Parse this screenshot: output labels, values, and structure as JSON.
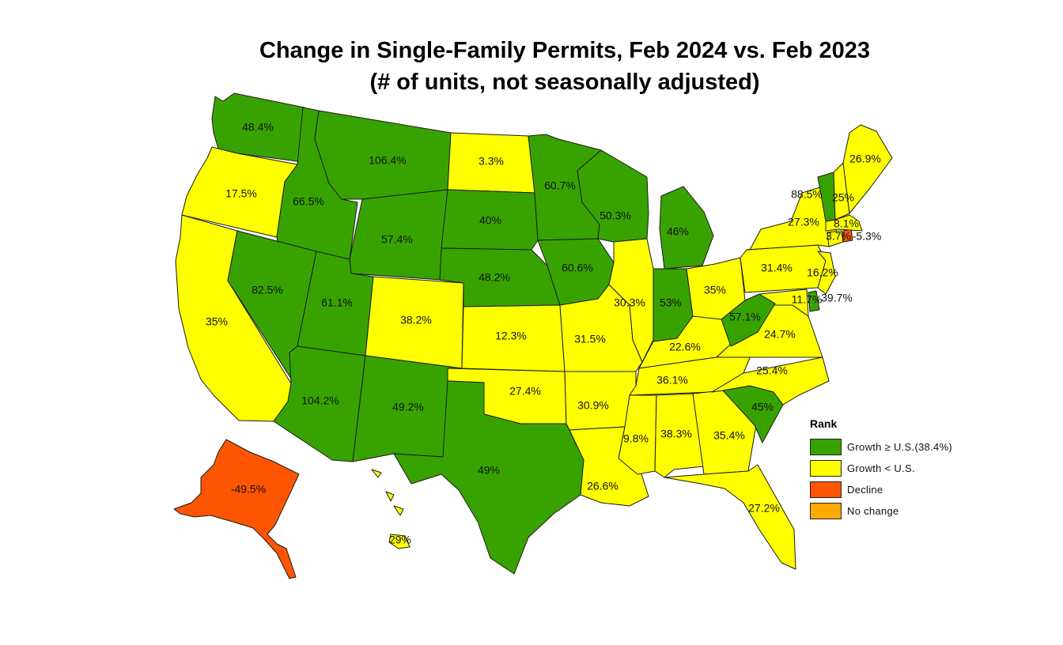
{
  "title": "Change in Single-Family Permits, Feb 2024 vs. Feb 2023",
  "subtitle": "(# of units, not seasonally adjusted)",
  "colors": {
    "growth_above_us": "#38a300",
    "growth_below_us": "#ffff00",
    "decline": "#ff5500",
    "no_change": "#ffaa00"
  },
  "legend": {
    "title": "Rank",
    "items": [
      {
        "label": "Growth ≥ U.S.(38.4%)",
        "color": "#38a300"
      },
      {
        "label": "Growth < U.S.",
        "color": "#ffff00"
      },
      {
        "label": "Decline",
        "color": "#ff5500"
      },
      {
        "label": "No change",
        "color": "#ffaa00"
      }
    ]
  },
  "chart_data": {
    "type": "choropleth",
    "us_benchmark_pct": 38.4,
    "states": [
      {
        "state": "WA",
        "value": "48.4%",
        "rank": "Growth ≥ U.S."
      },
      {
        "state": "OR",
        "value": "17.5%",
        "rank": "Growth < U.S."
      },
      {
        "state": "CA",
        "value": "35%",
        "rank": "Growth < U.S."
      },
      {
        "state": "ID",
        "value": "66.5%",
        "rank": "Growth ≥ U.S."
      },
      {
        "state": "NV",
        "value": "82.5%",
        "rank": "Growth ≥ U.S."
      },
      {
        "state": "MT",
        "value": "106.4%",
        "rank": "Growth ≥ U.S."
      },
      {
        "state": "WY",
        "value": "57.4%",
        "rank": "Growth ≥ U.S."
      },
      {
        "state": "UT",
        "value": "61.1%",
        "rank": "Growth ≥ U.S."
      },
      {
        "state": "AZ",
        "value": "104.2%",
        "rank": "Growth ≥ U.S."
      },
      {
        "state": "CO",
        "value": "38.2%",
        "rank": "Growth < U.S."
      },
      {
        "state": "NM",
        "value": "49.2%",
        "rank": "Growth ≥ U.S."
      },
      {
        "state": "ND",
        "value": "3.3%",
        "rank": "Growth < U.S."
      },
      {
        "state": "SD",
        "value": "40%",
        "rank": "Growth ≥ U.S."
      },
      {
        "state": "NE",
        "value": "48.2%",
        "rank": "Growth ≥ U.S."
      },
      {
        "state": "KS",
        "value": "12.3%",
        "rank": "Growth < U.S."
      },
      {
        "state": "OK",
        "value": "27.4%",
        "rank": "Growth < U.S."
      },
      {
        "state": "TX",
        "value": "49%",
        "rank": "Growth ≥ U.S."
      },
      {
        "state": "MN",
        "value": "60.7%",
        "rank": "Growth ≥ U.S."
      },
      {
        "state": "IA",
        "value": "60.6%",
        "rank": "Growth ≥ U.S."
      },
      {
        "state": "MO",
        "value": "31.5%",
        "rank": "Growth < U.S."
      },
      {
        "state": "AR",
        "value": "30.9%",
        "rank": "Growth < U.S."
      },
      {
        "state": "LA",
        "value": "26.6%",
        "rank": "Growth < U.S."
      },
      {
        "state": "WI",
        "value": "50.3%",
        "rank": "Growth ≥ U.S."
      },
      {
        "state": "IL",
        "value": "30.3%",
        "rank": "Growth < U.S."
      },
      {
        "state": "MI",
        "value": "46%",
        "rank": "Growth ≥ U.S."
      },
      {
        "state": "IN",
        "value": "53%",
        "rank": "Growth ≥ U.S."
      },
      {
        "state": "OH",
        "value": "35%",
        "rank": "Growth < U.S."
      },
      {
        "state": "KY",
        "value": "22.6%",
        "rank": "Growth < U.S."
      },
      {
        "state": "TN",
        "value": "36.1%",
        "rank": "Growth < U.S."
      },
      {
        "state": "MS",
        "value": "9.8%",
        "rank": "Growth < U.S."
      },
      {
        "state": "AL",
        "value": "38.3%",
        "rank": "Growth < U.S."
      },
      {
        "state": "GA",
        "value": "35.4%",
        "rank": "Growth < U.S."
      },
      {
        "state": "FL",
        "value": "27.2%",
        "rank": "Growth < U.S."
      },
      {
        "state": "SC",
        "value": "45%",
        "rank": "Growth ≥ U.S."
      },
      {
        "state": "NC",
        "value": "25.4%",
        "rank": "Growth < U.S."
      },
      {
        "state": "VA",
        "value": "24.7%",
        "rank": "Growth < U.S."
      },
      {
        "state": "WV",
        "value": "57.1%",
        "rank": "Growth ≥ U.S."
      },
      {
        "state": "MD",
        "value": "11.7%",
        "rank": "Growth < U.S."
      },
      {
        "state": "DE",
        "value": "39.7%",
        "rank": "Growth ≥ U.S."
      },
      {
        "state": "PA",
        "value": "31.4%",
        "rank": "Growth < U.S."
      },
      {
        "state": "NJ",
        "value": "16.2%",
        "rank": "Growth < U.S."
      },
      {
        "state": "NY",
        "value": "27.3%",
        "rank": "Growth < U.S."
      },
      {
        "state": "CT",
        "value": "3.7%",
        "rank": "Growth < U.S."
      },
      {
        "state": "RI",
        "value": "-5.3%",
        "rank": "Decline"
      },
      {
        "state": "MA",
        "value": "8.1%",
        "rank": "Growth < U.S."
      },
      {
        "state": "VT",
        "value": "88.5%",
        "rank": "Growth ≥ U.S."
      },
      {
        "state": "NH",
        "value": "25%",
        "rank": "Growth < U.S."
      },
      {
        "state": "ME",
        "value": "26.9%",
        "rank": "Growth < U.S."
      },
      {
        "state": "AK",
        "value": "-49.5%",
        "rank": "Decline"
      },
      {
        "state": "HI",
        "value": "29%",
        "rank": "Growth < U.S."
      }
    ]
  }
}
